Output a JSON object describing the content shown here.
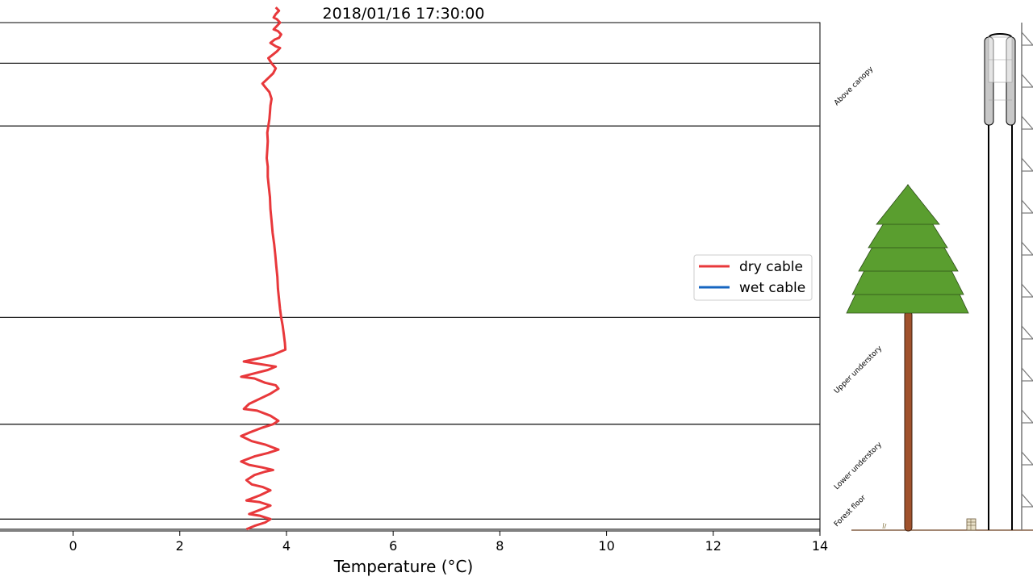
{
  "chart_data": {
    "type": "line",
    "title": "2018/01/16  17:30:00",
    "xlabel": "Temperature (°C)",
    "ylabel": "",
    "xlim": [
      -1.4,
      14
    ],
    "ylim": [
      0,
      30
    ],
    "xticks": [
      "0",
      "2",
      "4",
      "6",
      "8",
      "10",
      "12",
      "14"
    ],
    "xtick_values": [
      0,
      2,
      4,
      6,
      8,
      10,
      12,
      14
    ],
    "grid": false,
    "legend_position": "right",
    "zone_boundaries": [
      0.1,
      0.7,
      6.3,
      12.6,
      23.9,
      27.6
    ],
    "zones": [
      "Above canopy",
      "Upper understory",
      "Lower understory",
      "Forest floor"
    ],
    "series": [
      {
        "name": "dry cable",
        "color": "#e8383b",
        "x": [
          3.25,
          3.4,
          3.6,
          3.7,
          3.5,
          3.3,
          3.55,
          3.7,
          3.5,
          3.25,
          3.5,
          3.7,
          3.55,
          3.35,
          3.25,
          3.4,
          3.6,
          3.75,
          3.55,
          3.3,
          3.15,
          3.4,
          3.65,
          3.85,
          3.6,
          3.35,
          3.15,
          3.3,
          3.55,
          3.75,
          3.85,
          3.7,
          3.45,
          3.2,
          3.3,
          3.5,
          3.7,
          3.85,
          3.8,
          3.6,
          3.4,
          3.15,
          3.4,
          3.65,
          3.8,
          3.6,
          3.4,
          3.2,
          3.5,
          3.75,
          3.98,
          3.97,
          3.95,
          3.93,
          3.9,
          3.88,
          3.86,
          3.84,
          3.83,
          3.81,
          3.79,
          3.77,
          3.74,
          3.72,
          3.7,
          3.69,
          3.67,
          3.65,
          3.65,
          3.63,
          3.64,
          3.65,
          3.64,
          3.66,
          3.68,
          3.69,
          3.7,
          3.72,
          3.68,
          3.6,
          3.55,
          3.65,
          3.75,
          3.8,
          3.72,
          3.66,
          3.74,
          3.82,
          3.88,
          3.8,
          3.7,
          3.78,
          3.86,
          3.9,
          3.84,
          3.76,
          3.82,
          3.88,
          3.82,
          3.76,
          3.8,
          3.86,
          3.8
        ],
        "y": [
          0.1,
          0.3,
          0.5,
          0.7,
          0.9,
          1.0,
          1.3,
          1.5,
          1.7,
          1.8,
          2.1,
          2.4,
          2.6,
          2.75,
          3.0,
          3.3,
          3.5,
          3.6,
          3.75,
          3.9,
          4.1,
          4.4,
          4.6,
          4.8,
          5.1,
          5.3,
          5.6,
          5.8,
          6.1,
          6.3,
          6.5,
          6.8,
          7.1,
          7.2,
          7.5,
          7.8,
          8.1,
          8.4,
          8.6,
          8.75,
          9.0,
          9.1,
          9.3,
          9.5,
          9.7,
          9.8,
          9.9,
          10.0,
          10.2,
          10.4,
          10.7,
          11.1,
          11.6,
          12.1,
          12.6,
          13.1,
          13.7,
          14.3,
          15.0,
          15.6,
          16.3,
          16.9,
          17.6,
          18.3,
          19.0,
          19.7,
          20.3,
          20.9,
          21.5,
          22.0,
          22.5,
          23.0,
          23.5,
          23.9,
          24.3,
          24.7,
          25.1,
          25.5,
          25.9,
          26.2,
          26.4,
          26.7,
          27.0,
          27.3,
          27.6,
          27.9,
          28.1,
          28.3,
          28.5,
          28.6,
          28.8,
          29.0,
          29.1,
          29.3,
          29.5,
          29.6,
          29.8,
          30.0,
          30.2,
          30.3,
          30.5,
          30.7,
          30.9
        ]
      },
      {
        "name": "wet cable",
        "color": "#1565c0",
        "x": [],
        "y": []
      }
    ]
  }
}
